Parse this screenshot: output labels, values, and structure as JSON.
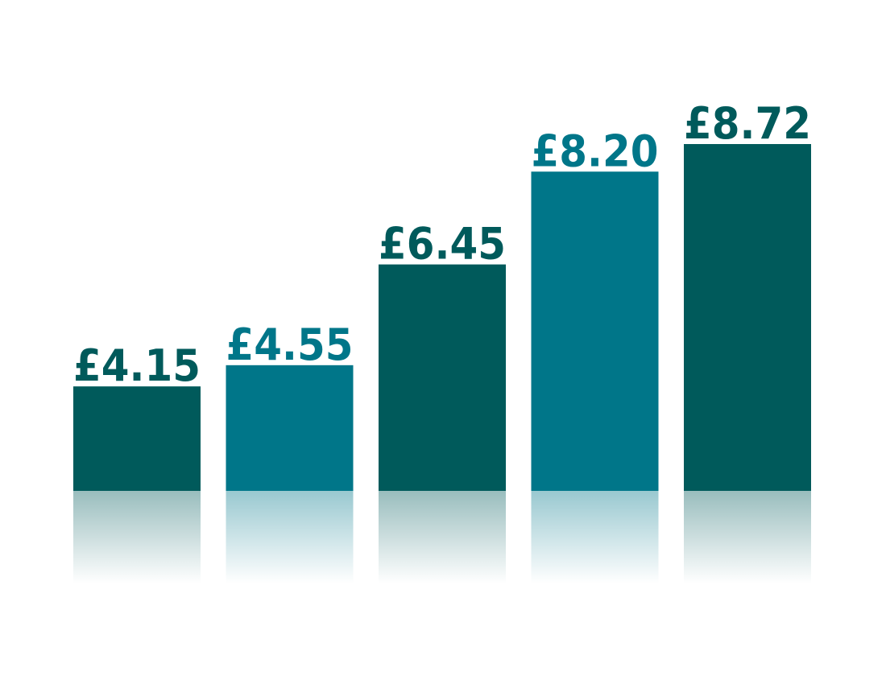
{
  "chart_data": {
    "type": "bar",
    "values": [
      4.15,
      4.55,
      6.45,
      8.2,
      8.72
    ],
    "labels": [
      "£4.15",
      "£4.55",
      "£6.45",
      "£8.20",
      "£8.72"
    ],
    "colors": [
      "#005a5b",
      "#007689",
      "#005a5b",
      "#007689",
      "#005a5b"
    ],
    "ylim": [
      2.18,
      9.5
    ],
    "grid": false,
    "title": "",
    "xlabel": "",
    "ylabel": ""
  }
}
